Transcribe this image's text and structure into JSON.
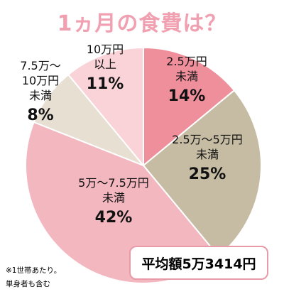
{
  "chart_data": {
    "type": "pie",
    "title": "1ヵ月の食費は？",
    "slices": [
      {
        "label_lines": [
          "2.5万円",
          "未満"
        ],
        "value": 14,
        "value_text": "14%",
        "color": "#ef8f9c"
      },
      {
        "label_lines": [
          "2.5万〜5万円",
          "未満"
        ],
        "value": 25,
        "value_text": "25%",
        "color": "#c6bca3"
      },
      {
        "label_lines": [
          "5万〜7.5万円",
          "未満"
        ],
        "value": 42,
        "value_text": "42%",
        "color": "#f3b7c0"
      },
      {
        "label_lines": [
          "7.5万〜",
          "10万円",
          "未満"
        ],
        "value": 8,
        "value_text": "8%",
        "color": "#e6dfd2"
      },
      {
        "label_lines": [
          "10万円",
          "以上"
        ],
        "value": 11,
        "value_text": "11%",
        "color": "#f9d3d8"
      }
    ],
    "average_label": "平均額5万3414円",
    "footnote_lines": [
      "※1世帯あたり。",
      "単身者も含む"
    ]
  }
}
